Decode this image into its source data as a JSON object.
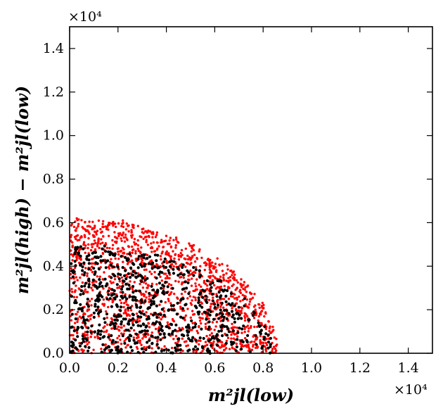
{
  "chart_data": {
    "type": "scatter",
    "xlabel": "m²jl(low)",
    "ylabel": "m²jl(high) − m²jl(low)",
    "x_multiplier": "×10⁴",
    "y_multiplier": "×10⁴",
    "xlim": [
      0,
      15000
    ],
    "ylim": [
      0,
      15000
    ],
    "x_ticks": [
      0,
      2000,
      4000,
      6000,
      8000,
      10000,
      12000,
      14000
    ],
    "y_ticks": [
      0,
      2000,
      4000,
      6000,
      8000,
      10000,
      12000,
      14000
    ],
    "x_tick_labels": [
      "0.0",
      "0.2",
      "0.4",
      "0.6",
      "0.8",
      "1.0",
      "1.2",
      "1.4"
    ],
    "y_tick_labels": [
      "0.0",
      "0.2",
      "0.4",
      "0.6",
      "0.8",
      "1.0",
      "1.2",
      "1.4"
    ],
    "grid": false,
    "series": [
      {
        "name": "red points",
        "color": "#ff0000",
        "count": 1500,
        "region": "quarter-ellipse, x_max 8600, y_max 6200",
        "points": [
          [
            200,
            4600
          ],
          [
            600,
            5100
          ],
          [
            1000,
            5400
          ],
          [
            1400,
            5800
          ],
          [
            1800,
            6000
          ],
          [
            2200,
            6100
          ],
          [
            2600,
            5900
          ],
          [
            3000,
            5700
          ],
          [
            3400,
            5500
          ],
          [
            3800,
            5200
          ],
          [
            4200,
            4900
          ],
          [
            4600,
            4600
          ],
          [
            5000,
            4300
          ],
          [
            5400,
            4000
          ],
          [
            5800,
            3700
          ],
          [
            6200,
            3400
          ],
          [
            6600,
            3000
          ],
          [
            7000,
            2600
          ],
          [
            7400,
            2100
          ],
          [
            7800,
            1500
          ],
          [
            8200,
            800
          ],
          [
            8500,
            200
          ],
          [
            900,
            2200
          ],
          [
            2500,
            3300
          ],
          [
            4100,
            2400
          ],
          [
            5500,
            1600
          ],
          [
            6900,
            900
          ],
          [
            1700,
            800
          ],
          [
            3300,
            1200
          ],
          [
            6100,
            2400
          ]
        ]
      },
      {
        "name": "black points",
        "color": "#000000",
        "count": 700,
        "region": "quarter-ellipse, x_max 8400, y_max 5000",
        "points": [
          [
            300,
            4800
          ],
          [
            800,
            4500
          ],
          [
            1500,
            4200
          ],
          [
            2300,
            4400
          ],
          [
            3100,
            4000
          ],
          [
            3900,
            4200
          ],
          [
            4700,
            3600
          ],
          [
            5500,
            2900
          ],
          [
            6300,
            2300
          ],
          [
            7100,
            1600
          ],
          [
            7900,
            900
          ],
          [
            8300,
            300
          ],
          [
            1200,
            2600
          ],
          [
            2900,
            1900
          ],
          [
            4400,
            1300
          ],
          [
            5900,
            700
          ],
          [
            2000,
            300
          ],
          [
            3600,
            2800
          ],
          [
            6700,
            400
          ],
          [
            500,
            1200
          ]
        ]
      }
    ]
  }
}
